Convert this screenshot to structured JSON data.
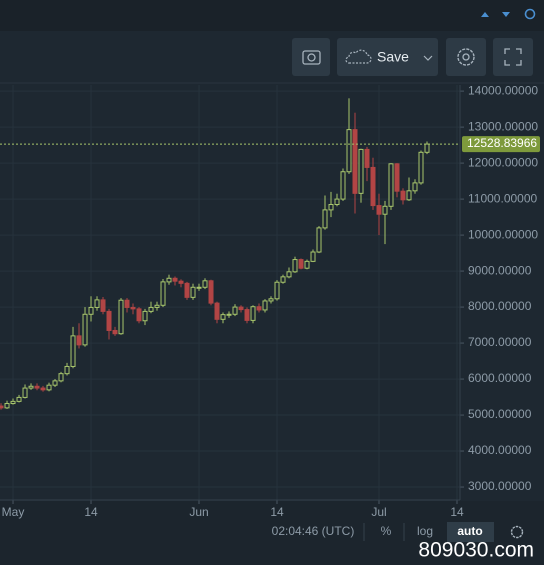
{
  "toolbar": {
    "save": "Save"
  },
  "chart_data": {
    "type": "candlestick",
    "candles": {
      "open": [
        5250,
        5200,
        5320,
        5380,
        5490,
        5750,
        5800,
        5750,
        5700,
        5830,
        5950,
        6150,
        6350,
        7200,
        6950,
        7800,
        7990,
        8200,
        7880,
        7350,
        7260,
        8190,
        7990,
        7950,
        7620,
        7880,
        7990,
        8050,
        8700,
        8800,
        8720,
        8660,
        8270,
        8550,
        8550,
        8730,
        8110,
        7660,
        7790,
        7800,
        8000,
        7930,
        7630,
        8010,
        7920,
        8170,
        8230,
        8690,
        8840,
        8980,
        9320,
        9080,
        9270,
        9530,
        10200,
        10700,
        10850,
        11000,
        11760,
        12930,
        11160,
        12380,
        11880,
        10820,
        10580,
        10800,
        11980,
        11220,
        10980,
        11230,
        11450,
        12300
      ],
      "high": [
        5330,
        5400,
        5460,
        5560,
        5850,
        5880,
        5880,
        5810,
        5900,
        6000,
        6200,
        6450,
        7450,
        7550,
        8000,
        8300,
        8300,
        8280,
        7950,
        7450,
        8250,
        8250,
        8100,
        8000,
        7950,
        8150,
        8150,
        8780,
        8900,
        8850,
        8770,
        8700,
        8650,
        8650,
        8800,
        8760,
        8150,
        7850,
        7880,
        8080,
        8050,
        7990,
        8050,
        8100,
        8220,
        8300,
        8750,
        8900,
        9100,
        9400,
        9350,
        9320,
        9600,
        10250,
        11100,
        11200,
        11150,
        11850,
        13800,
        13400,
        12400,
        12450,
        12150,
        11150,
        10950,
        12000,
        12000,
        11300,
        11600,
        11550,
        12350,
        12600
      ],
      "low": [
        5150,
        5170,
        5290,
        5350,
        5460,
        5700,
        5690,
        5650,
        5660,
        5780,
        5910,
        6100,
        6300,
        6850,
        6900,
        7600,
        7900,
        7800,
        7100,
        7200,
        7230,
        7850,
        7800,
        7550,
        7500,
        7830,
        7900,
        8000,
        8620,
        8600,
        8550,
        8200,
        8200,
        8450,
        8500,
        8050,
        7550,
        7550,
        7700,
        7750,
        7850,
        7550,
        7550,
        7850,
        7850,
        8100,
        8180,
        8650,
        8800,
        8950,
        9050,
        9050,
        9250,
        9500,
        10150,
        10500,
        10800,
        10950,
        11700,
        10600,
        10900,
        11500,
        10700,
        10000,
        9750,
        10700,
        11050,
        10850,
        10950,
        11150,
        11400,
        12250
      ],
      "close": [
        5200,
        5320,
        5380,
        5490,
        5750,
        5800,
        5750,
        5700,
        5830,
        5950,
        6150,
        6350,
        7200,
        6950,
        7800,
        7990,
        8200,
        7880,
        7350,
        7260,
        8190,
        7990,
        7950,
        7620,
        7880,
        7990,
        8050,
        8700,
        8800,
        8720,
        8660,
        8270,
        8550,
        8550,
        8730,
        8110,
        7660,
        7790,
        7800,
        8000,
        7930,
        7630,
        8010,
        7920,
        8170,
        8230,
        8690,
        8840,
        8980,
        9320,
        9080,
        9270,
        9530,
        10200,
        10700,
        10850,
        11000,
        11760,
        12930,
        11160,
        12380,
        11880,
        10820,
        10580,
        10800,
        11980,
        11220,
        10980,
        11230,
        11450,
        12300,
        12528.83966
      ]
    },
    "up_color": "#a8c66c",
    "down_color": "#b24545",
    "xlim": [
      -0.17,
      76.5
    ],
    "xticks": [
      {
        "value": 2,
        "label": "May"
      },
      {
        "value": 15,
        "label": "14"
      },
      {
        "value": 33,
        "label": "Jun"
      },
      {
        "value": 46,
        "label": "14"
      },
      {
        "value": 63,
        "label": "Jul"
      },
      {
        "value": 76,
        "label": "14"
      }
    ],
    "ylim": [
      2640,
      14170
    ],
    "yticks": [
      {
        "value": 3000,
        "label": "3000.00000"
      },
      {
        "value": 4000,
        "label": "4000.00000"
      },
      {
        "value": 5000,
        "label": "5000.00000"
      },
      {
        "value": 6000,
        "label": "6000.00000"
      },
      {
        "value": 7000,
        "label": "7000.00000"
      },
      {
        "value": 8000,
        "label": "8000.00000"
      },
      {
        "value": 9000,
        "label": "9000.00000"
      },
      {
        "value": 10000,
        "label": "10000.00000"
      },
      {
        "value": 11000,
        "label": "11000.00000"
      },
      {
        "value": 12000,
        "label": "12000.00000"
      },
      {
        "value": 13000,
        "label": "13000.00000"
      },
      {
        "value": 14000,
        "label": "14000.00000"
      }
    ],
    "grid": true
  },
  "status_bar": {
    "time": "02:04:46 (UTC)",
    "percent": "%",
    "log": "log",
    "auto": "auto"
  },
  "watermark": "809030.com"
}
